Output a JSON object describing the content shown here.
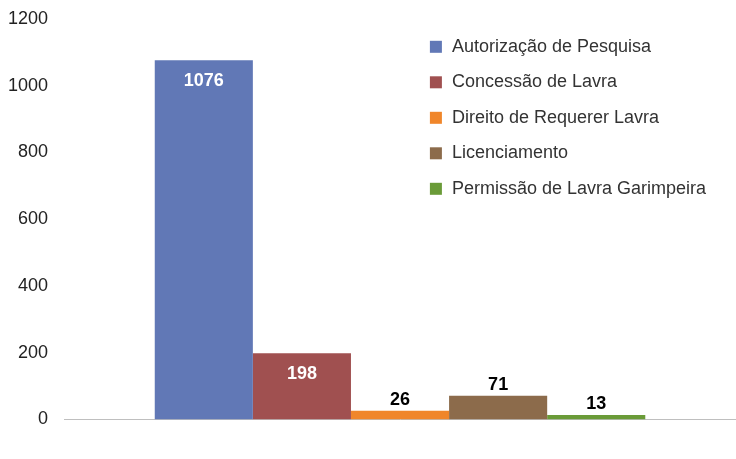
{
  "chart_data": {
    "type": "bar",
    "categories": [
      null
    ],
    "series": [
      {
        "name": "Autorização de Pesquisa",
        "color": "#6178b6",
        "values": [
          1076
        ]
      },
      {
        "name": "Concessão de Lavra",
        "color": "#a05050",
        "values": [
          198
        ]
      },
      {
        "name": "Direito de Requerer Lavra",
        "color": "#f0862a",
        "values": [
          26
        ]
      },
      {
        "name": "Licenciamento",
        "color": "#8c6b4b",
        "values": [
          71
        ]
      },
      {
        "name": "Permissão de Lavra Garimpeira",
        "color": "#6a9b38",
        "values": [
          13
        ]
      }
    ],
    "ylim": [
      0,
      1200
    ],
    "yticks": [
      0,
      200,
      400,
      600,
      800,
      1000,
      1200
    ],
    "grid": false,
    "legend": "top right",
    "data_labels": true
  }
}
